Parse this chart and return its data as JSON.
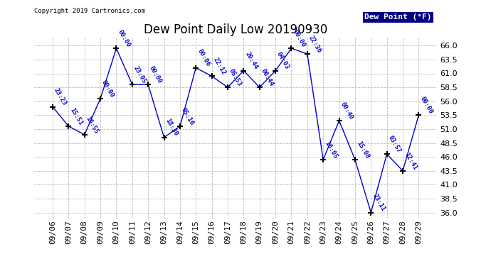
{
  "title": "Dew Point Daily Low 20190930",
  "copyright": "Copyright 2019 Cartronics.com",
  "legend_label": "Dew Point (°F)",
  "dates": [
    "09/06",
    "09/07",
    "09/08",
    "09/09",
    "09/10",
    "09/11",
    "09/12",
    "09/13",
    "09/14",
    "09/15",
    "09/16",
    "09/17",
    "09/18",
    "09/19",
    "09/20",
    "09/21",
    "09/22",
    "09/23",
    "09/24",
    "09/25",
    "09/26",
    "09/27",
    "09/28",
    "09/29"
  ],
  "values": [
    55.0,
    51.5,
    50.0,
    56.5,
    65.5,
    59.0,
    59.0,
    49.5,
    51.5,
    62.0,
    60.5,
    58.5,
    61.5,
    58.5,
    61.5,
    65.5,
    64.5,
    45.5,
    52.5,
    45.5,
    36.0,
    46.5,
    43.5,
    53.5
  ],
  "labels": [
    "23:23",
    "15:51",
    "16:55",
    "00:00",
    "00:00",
    "23:05",
    "00:00",
    "18:30",
    "05:16",
    "00:06",
    "22:12",
    "05:53",
    "20:44",
    "06:44",
    "04:03",
    "00:00",
    "22:36",
    "16:05",
    "00:40",
    "15:08",
    "23:11",
    "03:57",
    "12:41",
    "00:00"
  ],
  "line_color": "#0000cc",
  "marker_color": "#000000",
  "label_color": "#0000cc",
  "background_color": "#ffffff",
  "grid_color": "#bbbbbb",
  "ylim": [
    35.0,
    67.5
  ],
  "yticks": [
    36.0,
    38.5,
    41.0,
    43.5,
    46.0,
    48.5,
    51.0,
    53.5,
    56.0,
    58.5,
    61.0,
    63.5,
    66.0
  ],
  "title_fontsize": 12,
  "label_fontsize": 6.5,
  "tick_fontsize": 8,
  "legend_bg": "#000080",
  "legend_fg": "#ffffff"
}
